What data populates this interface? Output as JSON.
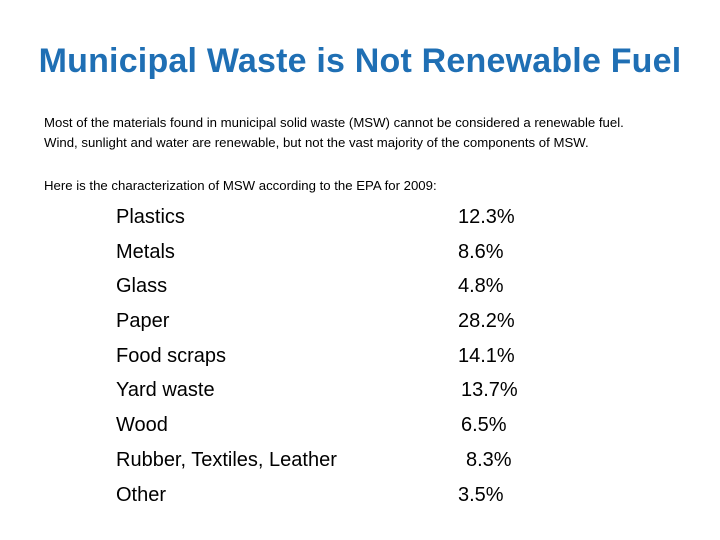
{
  "slide": {
    "title": "Municipal Waste is Not Renewable Fuel",
    "intro_line1": "Most of the materials found in municipal solid waste (MSW) cannot be considered a renewable fuel.",
    "intro_line2": "Wind, sunlight and water are renewable, but not the vast majority of the components of MSW.",
    "lead": "Here is the characterization of MSW according to the EPA for 2009:"
  },
  "composition": [
    {
      "label": "Plastics",
      "value": "12.3%"
    },
    {
      "label": "Metals",
      "value": "8.6%"
    },
    {
      "label": "Glass",
      "value": "4.8%"
    },
    {
      "label": "Paper",
      "value": "28.2%"
    },
    {
      "label": "Food scraps",
      "value": "14.1%"
    },
    {
      "label": "Yard waste",
      "value": "13.7%"
    },
    {
      "label": "Wood",
      "value": "6.5%"
    },
    {
      "label": "Rubber, Textiles, Leather",
      "value": "8.3%"
    },
    {
      "label": "Other",
      "value": "3.5%"
    }
  ],
  "colors": {
    "title": "#1f6fb4",
    "text": "#000000",
    "background": "#ffffff"
  }
}
